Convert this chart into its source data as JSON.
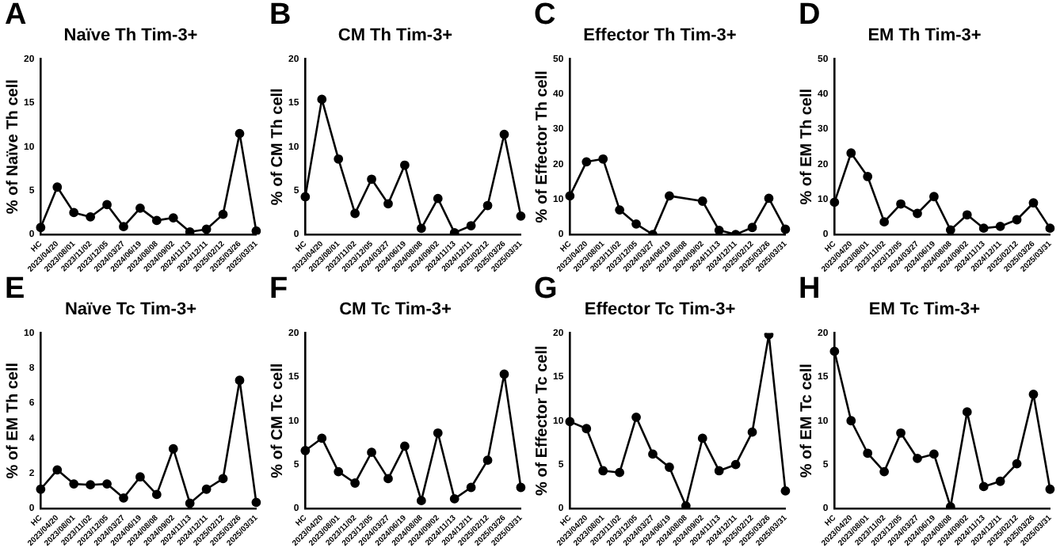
{
  "chart_data": [
    {
      "type": "line",
      "title": "Naïve Th Tim-3+",
      "ylabel": "% of Naïve Th cell",
      "annotations": [
        "A"
      ],
      "categories": [
        "HC",
        "2023/04/20",
        "2023/08/01",
        "2023/11/02",
        "2023/12/05",
        "2024/03/27",
        "2024/06/19",
        "2024/08/08",
        "2024/09/02",
        "2024/11/13",
        "2024/12/11",
        "2025/02/12",
        "2025/03/26",
        "2025/03/31"
      ],
      "series": [
        {
          "color": "#000000",
          "values": [
            0.8,
            5.4,
            2.5,
            2.0,
            3.4,
            0.9,
            3.0,
            1.6,
            1.9,
            0.3,
            0.6,
            2.3,
            11.5,
            0.4
          ]
        }
      ],
      "ylim": [
        0,
        20
      ],
      "yticks": [
        0,
        5,
        10,
        15,
        20
      ],
      "marker": "circle",
      "line_style": "solid"
    },
    {
      "type": "line",
      "title": "CM Th Tim-3+",
      "ylabel": "% of CM Th cell",
      "annotations": [
        "B"
      ],
      "categories": [
        "HC",
        "2023/04/20",
        "2023/08/01",
        "2023/11/02",
        "2023/12/05",
        "2024/03/27",
        "2024/06/19",
        "2024/08/08",
        "2024/09/02",
        "2024/11/13",
        "2024/12/11",
        "2025/02/12",
        "2025/03/26",
        "2025/03/31"
      ],
      "series": [
        {
          "color": "#000000",
          "values": [
            4.3,
            15.4,
            8.6,
            2.4,
            6.3,
            3.5,
            7.9,
            0.7,
            4.1,
            0.2,
            1.0,
            3.3,
            11.4,
            2.1
          ]
        }
      ],
      "ylim": [
        0,
        20
      ],
      "yticks": [
        0,
        5,
        10,
        15,
        20
      ],
      "marker": "circle",
      "line_style": "solid"
    },
    {
      "type": "line",
      "title": "Effector Th Tim-3+",
      "ylabel": "% of Effector Th cell",
      "annotations": [
        "C"
      ],
      "categories": [
        "HC",
        "2023/04/20",
        "2023/08/01",
        "2023/11/02",
        "2023/12/05",
        "2024/03/27",
        "2024/06/19",
        "2024/08/08",
        "2024/09/02",
        "2024/11/13",
        "2024/12/11",
        "2025/02/12",
        "2025/03/26",
        "2025/03/31"
      ],
      "series": [
        {
          "color": "#000000",
          "values": [
            11,
            20.7,
            21.5,
            7,
            3,
            0,
            11,
            null,
            9.5,
            1.2,
            0,
            2,
            10.3,
            1.5
          ]
        }
      ],
      "ylim": [
        0,
        50
      ],
      "yticks": [
        0,
        10,
        20,
        30,
        40,
        50
      ],
      "marker": "circle",
      "line_style": "solid"
    },
    {
      "type": "line",
      "title": "EM Th Tim-3+",
      "ylabel": "% of EM Th cell",
      "annotations": [
        "D"
      ],
      "categories": [
        "HC",
        "2023/04/20",
        "2023/08/01",
        "2023/11/02",
        "2023/12/05",
        "2024/03/27",
        "2024/06/19",
        "2024/08/08",
        "2024/09/02",
        "2024/11/13",
        "2024/12/11",
        "2025/02/12",
        "2025/03/26",
        "2025/03/31"
      ],
      "series": [
        {
          "color": "#000000",
          "values": [
            9.2,
            23.2,
            16.5,
            3.6,
            8.7,
            6.0,
            10.8,
            1.3,
            5.6,
            1.8,
            2.3,
            4.2,
            9.0,
            1.8
          ]
        }
      ],
      "ylim": [
        0,
        50
      ],
      "yticks": [
        0,
        10,
        20,
        30,
        40,
        50
      ],
      "marker": "circle",
      "line_style": "solid"
    },
    {
      "type": "line",
      "title": "Naïve Tc Tim-3+",
      "ylabel": "% of EM Th cell",
      "annotations": [
        "E"
      ],
      "categories": [
        "HC",
        "2023/04/20",
        "2023/08/01",
        "2023/11/02",
        "2023/12/05",
        "2024/03/27",
        "2024/06/19",
        "2024/08/08",
        "2024/09/02",
        "2024/11/13",
        "2024/12/11",
        "2025/02/12",
        "2025/03/26",
        "2025/03/31"
      ],
      "series": [
        {
          "color": "#000000",
          "values": [
            1.1,
            2.2,
            1.4,
            1.35,
            1.4,
            0.6,
            1.8,
            0.8,
            3.4,
            0.3,
            1.1,
            1.7,
            7.3,
            0.35
          ]
        }
      ],
      "ylim": [
        0,
        10
      ],
      "yticks": [
        0,
        2,
        4,
        6,
        8,
        10
      ],
      "marker": "circle",
      "line_style": "solid"
    },
    {
      "type": "line",
      "title": "CM Tc Tim-3+",
      "ylabel": "% of CM Tc cell",
      "annotations": [
        "F"
      ],
      "categories": [
        "HC",
        "2023/04/20",
        "2023/08/01",
        "2023/11/02",
        "2023/12/05",
        "2024/03/27",
        "2024/06/19",
        "2024/08/08",
        "2024/09/02",
        "2024/11/13",
        "2024/12/11",
        "2025/02/12",
        "2025/03/26",
        "2025/03/31"
      ],
      "series": [
        {
          "color": "#000000",
          "values": [
            6.6,
            8.0,
            4.2,
            2.9,
            6.4,
            3.4,
            7.1,
            0.9,
            8.6,
            1.1,
            2.4,
            5.5,
            15.3,
            2.4
          ]
        }
      ],
      "ylim": [
        0,
        20
      ],
      "yticks": [
        0,
        5,
        10,
        15,
        20
      ],
      "marker": "circle",
      "line_style": "solid"
    },
    {
      "type": "line",
      "title": "Effector Tc Tim-3+",
      "ylabel": "% of Effector Tc cell",
      "annotations": [
        "G"
      ],
      "categories": [
        "HC",
        "2023/04/20",
        "2023/08/01",
        "2023/11/02",
        "2023/12/05",
        "2024/03/27",
        "2024/06/19",
        "2024/08/08",
        "2024/09/02",
        "2024/11/13",
        "2024/12/11",
        "2025/02/12",
        "2025/03/26",
        "2025/03/31"
      ],
      "series": [
        {
          "color": "#000000",
          "values": [
            9.9,
            9.1,
            4.3,
            4.1,
            10.4,
            6.2,
            4.7,
            0.3,
            8.0,
            4.3,
            5.0,
            8.7,
            19.8,
            2.0
          ]
        }
      ],
      "ylim": [
        0,
        20
      ],
      "yticks": [
        0,
        5,
        10,
        15,
        20
      ],
      "marker": "circle",
      "line_style": "solid"
    },
    {
      "type": "line",
      "title": "EM Tc Tim-3+",
      "ylabel": "% of EM Tc cell",
      "annotations": [
        "H"
      ],
      "categories": [
        "HC",
        "2023/04/20",
        "2023/08/01",
        "2023/11/02",
        "2023/12/05",
        "2024/03/27",
        "2024/06/19",
        "2024/08/08",
        "2024/09/02",
        "2024/11/13",
        "2024/12/11",
        "2025/02/12",
        "2025/03/26",
        "2025/03/31"
      ],
      "series": [
        {
          "color": "#000000",
          "values": [
            17.9,
            10.0,
            6.3,
            4.2,
            8.6,
            5.7,
            6.2,
            0.2,
            11.0,
            2.5,
            3.1,
            5.1,
            13.0,
            2.2
          ]
        }
      ],
      "ylim": [
        0,
        20
      ],
      "yticks": [
        0,
        5,
        10,
        15,
        20
      ],
      "marker": "circle",
      "line_style": "solid"
    }
  ]
}
